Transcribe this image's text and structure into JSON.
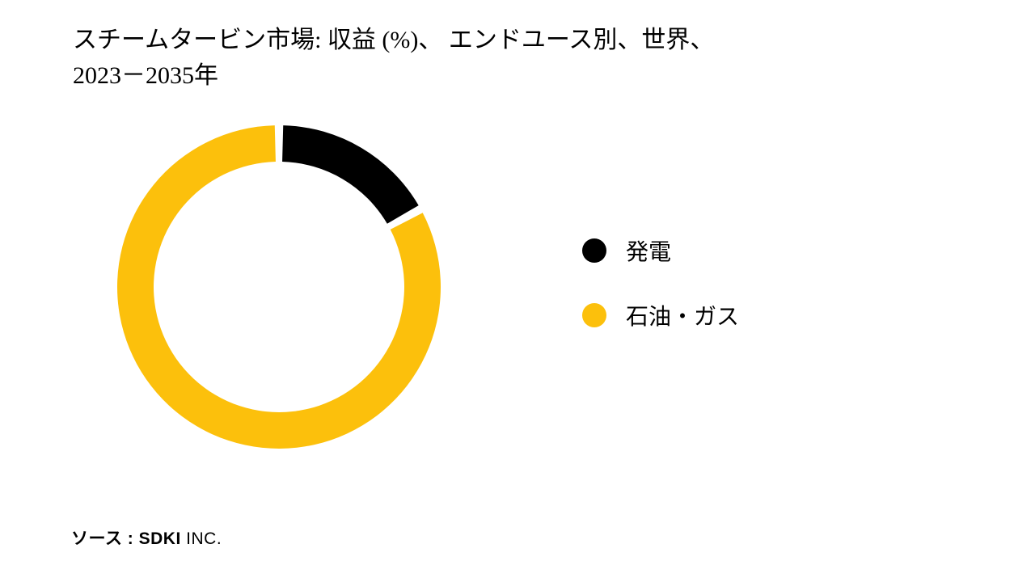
{
  "title_line1": "スチームタービン市場: 収益 (%)、 エンドユース別、世界、",
  "title_line2": "2023－2035年",
  "chart": {
    "type": "donut",
    "outer_radius": 200,
    "inner_radius": 155,
    "gap_deg": 3,
    "background_color": "#ffffff",
    "segments": [
      {
        "label": "発電",
        "value": 17,
        "color": "#000000"
      },
      {
        "label": "石油・ガス",
        "value": 83,
        "color": "#fcc00c"
      }
    ]
  },
  "legend": {
    "dot_size": 30,
    "fontsize": 28,
    "items": [
      {
        "label": "発電",
        "color": "#000000"
      },
      {
        "label": "石油・ガス",
        "color": "#fcc00c"
      }
    ]
  },
  "source_prefix": "ソース  : ",
  "source_bold": "SDKI",
  "source_rest": " INC."
}
